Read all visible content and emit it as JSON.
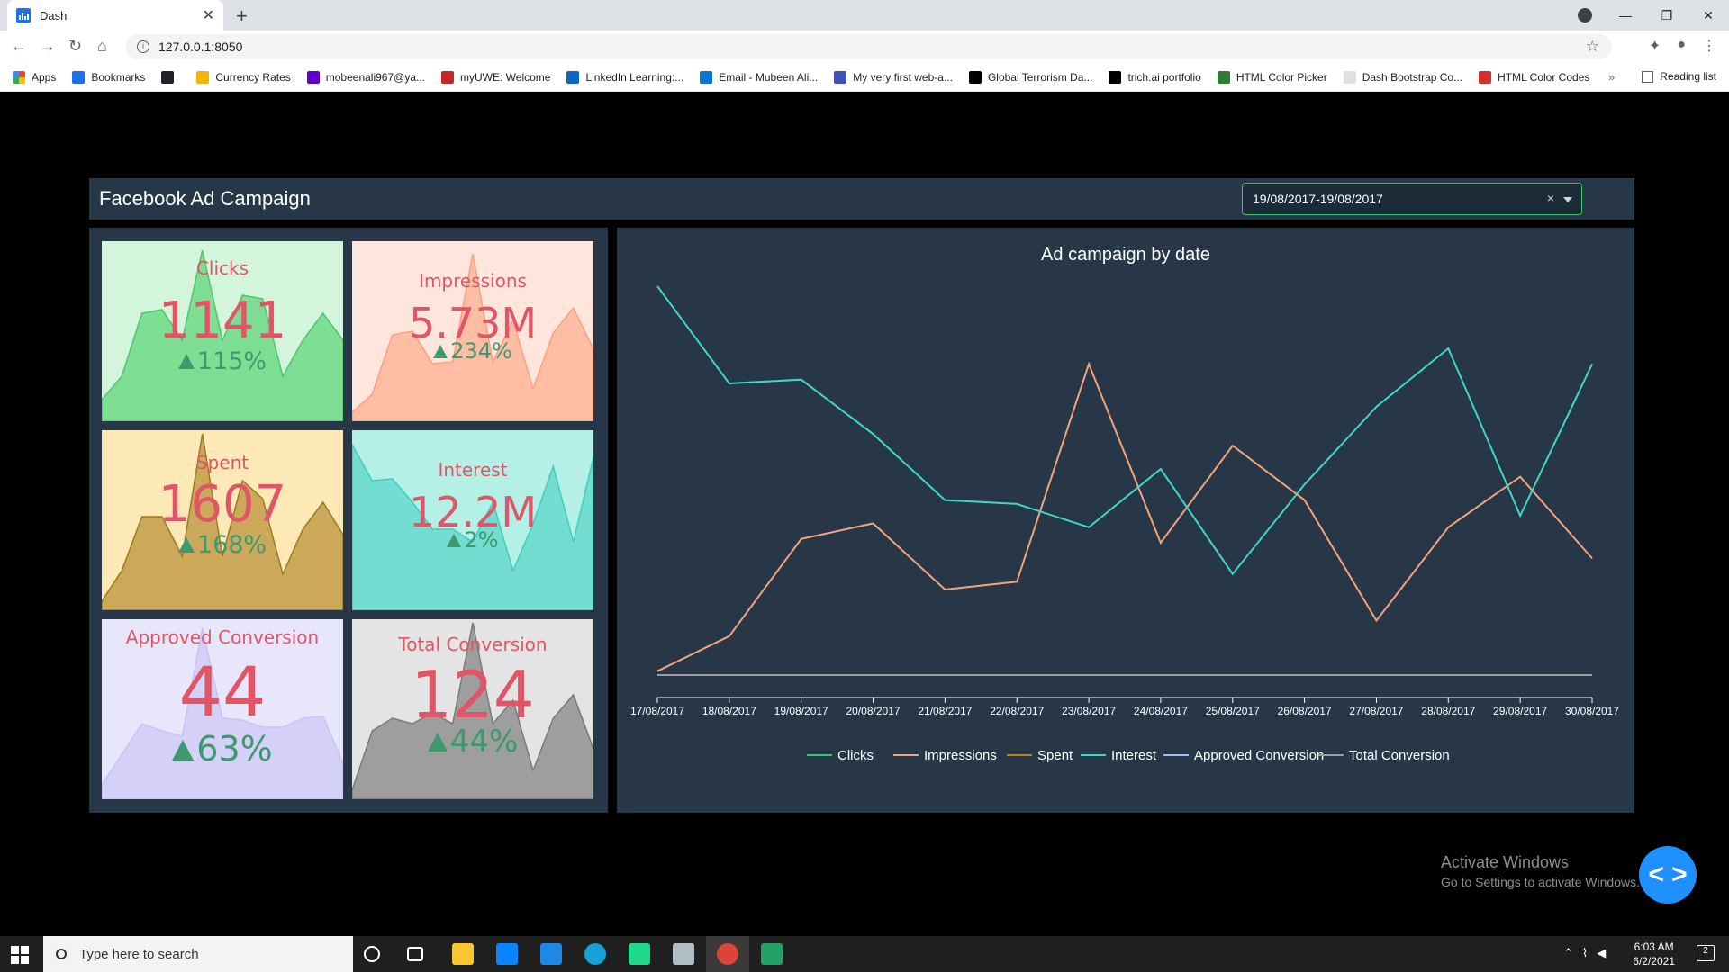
{
  "browser": {
    "tab_title": "Dash",
    "url": "127.0.0.1:8050",
    "bookmarks": [
      {
        "label": "Apps",
        "color": "#ea4335"
      },
      {
        "label": "Bookmarks",
        "color": "#1a73e8"
      },
      {
        "label": "",
        "color": "#202124"
      },
      {
        "label": "Currency Rates",
        "color": "#f4b400"
      },
      {
        "label": "mobeenali967@ya...",
        "color": "#6001d2"
      },
      {
        "label": "myUWE: Welcome",
        "color": "#c62828"
      },
      {
        "label": "LinkedIn Learning:...",
        "color": "#0a66c2"
      },
      {
        "label": "Email - Mubeen Ali...",
        "color": "#0078d4"
      },
      {
        "label": "My very first web-a...",
        "color": "#3f51b5"
      },
      {
        "label": "Global Terrorism Da...",
        "color": "#000000"
      },
      {
        "label": "trich.ai portfolio",
        "color": "#000000"
      },
      {
        "label": "HTML Color Picker",
        "color": "#2e7d32"
      },
      {
        "label": "Dash Bootstrap Co...",
        "color": "#e0e0e0"
      },
      {
        "label": "HTML Color Codes",
        "color": "#d32f2f"
      }
    ],
    "more": "»",
    "reading_list": "Reading list"
  },
  "dashboard": {
    "title": "Facebook Ad Campaign",
    "date_range": "19/08/2017-19/08/2017",
    "clear_symbol": "×"
  },
  "cards": [
    {
      "name": "Clicks",
      "value": "1141",
      "pct": "115%",
      "bg": "#d2f5dc",
      "fill": "#7dde94",
      "stroke": "#4fc56e",
      "spark": [
        0.12,
        0.25,
        0.6,
        0.62,
        0.45,
        0.95,
        0.45,
        0.7,
        0.68,
        0.25,
        0.45,
        0.6,
        0.45
      ]
    },
    {
      "name": "Impressions",
      "value": "5.73M",
      "pct": "234%",
      "bg": "#ffe6dc",
      "fill": "#ffbda3",
      "stroke": "#ff9f7f",
      "spark": [
        0.05,
        0.15,
        0.48,
        0.5,
        0.32,
        0.33,
        0.93,
        0.33,
        0.56,
        0.18,
        0.49,
        0.63,
        0.4
      ]
    },
    {
      "name": "Spent",
      "value": "1607",
      "pct": "168%",
      "bg": "#fde9b6",
      "fill": "#cca95a",
      "stroke": "#9a7a22",
      "spark": [
        0.05,
        0.22,
        0.52,
        0.52,
        0.3,
        0.98,
        0.3,
        0.72,
        0.62,
        0.2,
        0.45,
        0.6,
        0.42
      ]
    },
    {
      "name": "Interest",
      "value": "12.2M",
      "pct": "2%",
      "bg": "#b4f0e6",
      "fill": "#72ddd0",
      "stroke": "#40cdbf",
      "spark": [
        0.92,
        0.72,
        0.73,
        0.6,
        0.45,
        0.45,
        0.38,
        0.6,
        0.22,
        0.48,
        0.8,
        0.38,
        0.85
      ]
    },
    {
      "name": "Approved Conversion",
      "value": "44",
      "pct": "63%",
      "bg": "#e8e6fb",
      "fill": "#d4d0f8",
      "stroke": "#c8c3f5",
      "spark": [
        0.08,
        0.25,
        0.42,
        0.38,
        0.35,
        0.95,
        0.45,
        0.44,
        0.4,
        0.4,
        0.45,
        0.46,
        0.2
      ]
    },
    {
      "name": "Total Conversion",
      "value": "124",
      "pct": "44%",
      "bg": "#e4e4e4",
      "fill": "#9e9e9e",
      "stroke": "#7a7a7a",
      "spark": [
        0.05,
        0.38,
        0.45,
        0.42,
        0.48,
        0.42,
        0.98,
        0.42,
        0.55,
        0.16,
        0.45,
        0.58,
        0.28
      ]
    }
  ],
  "chart_data": {
    "type": "line",
    "title": "Ad campaign by date",
    "categories": [
      "17/08/2017",
      "18/08/2017",
      "19/08/2017",
      "20/08/2017",
      "21/08/2017",
      "22/08/2017",
      "23/08/2017",
      "24/08/2017",
      "25/08/2017",
      "26/08/2017",
      "27/08/2017",
      "28/08/2017",
      "29/08/2017",
      "30/08/2017"
    ],
    "ylim": [
      0,
      1.0
    ],
    "grid": false,
    "legend_position": "bottom",
    "series": [
      {
        "name": "Clicks",
        "color": "#2ecc71",
        "values": [
          0.0,
          0.0,
          0.0,
          0.0,
          0.0,
          0.0,
          0.0,
          0.0,
          0.0,
          0.0,
          0.0,
          0.0,
          0.0,
          0.0
        ]
      },
      {
        "name": "Impressions",
        "color": "#f5a37a",
        "values": [
          0.01,
          0.1,
          0.35,
          0.39,
          0.22,
          0.24,
          0.8,
          0.34,
          0.59,
          0.45,
          0.14,
          0.38,
          0.51,
          0.3
        ]
      },
      {
        "name": "Spent",
        "color": "#b8860b",
        "values": [
          0.0,
          0.0,
          0.0,
          0.0,
          0.0,
          0.0,
          0.0,
          0.0,
          0.0,
          0.0,
          0.0,
          0.0,
          0.0,
          0.0
        ]
      },
      {
        "name": "Interest",
        "color": "#40d6c8",
        "values": [
          1.0,
          0.75,
          0.76,
          0.62,
          0.45,
          0.44,
          0.38,
          0.53,
          0.26,
          0.49,
          0.69,
          0.84,
          0.41,
          0.8
        ]
      },
      {
        "name": "Approved Conversion",
        "color": "#a8b8ff",
        "values": [
          0.0,
          0.0,
          0.0,
          0.0,
          0.0,
          0.0,
          0.0,
          0.0,
          0.0,
          0.0,
          0.0,
          0.0,
          0.0,
          0.0
        ]
      },
      {
        "name": "Total Conversion",
        "color": "#9e9e9e",
        "values": [
          0.0,
          0.0,
          0.0,
          0.0,
          0.0,
          0.0,
          0.0,
          0.0,
          0.0,
          0.0,
          0.0,
          0.0,
          0.0,
          0.0
        ]
      }
    ]
  },
  "watermark": {
    "line1": "Activate Windows",
    "line2": "Go to Settings to activate Windows."
  },
  "fab_symbol": "< >",
  "taskbar": {
    "search_placeholder": "Type here to search",
    "time": "6:03 AM",
    "date": "6/2/2021",
    "notifications": "2"
  }
}
